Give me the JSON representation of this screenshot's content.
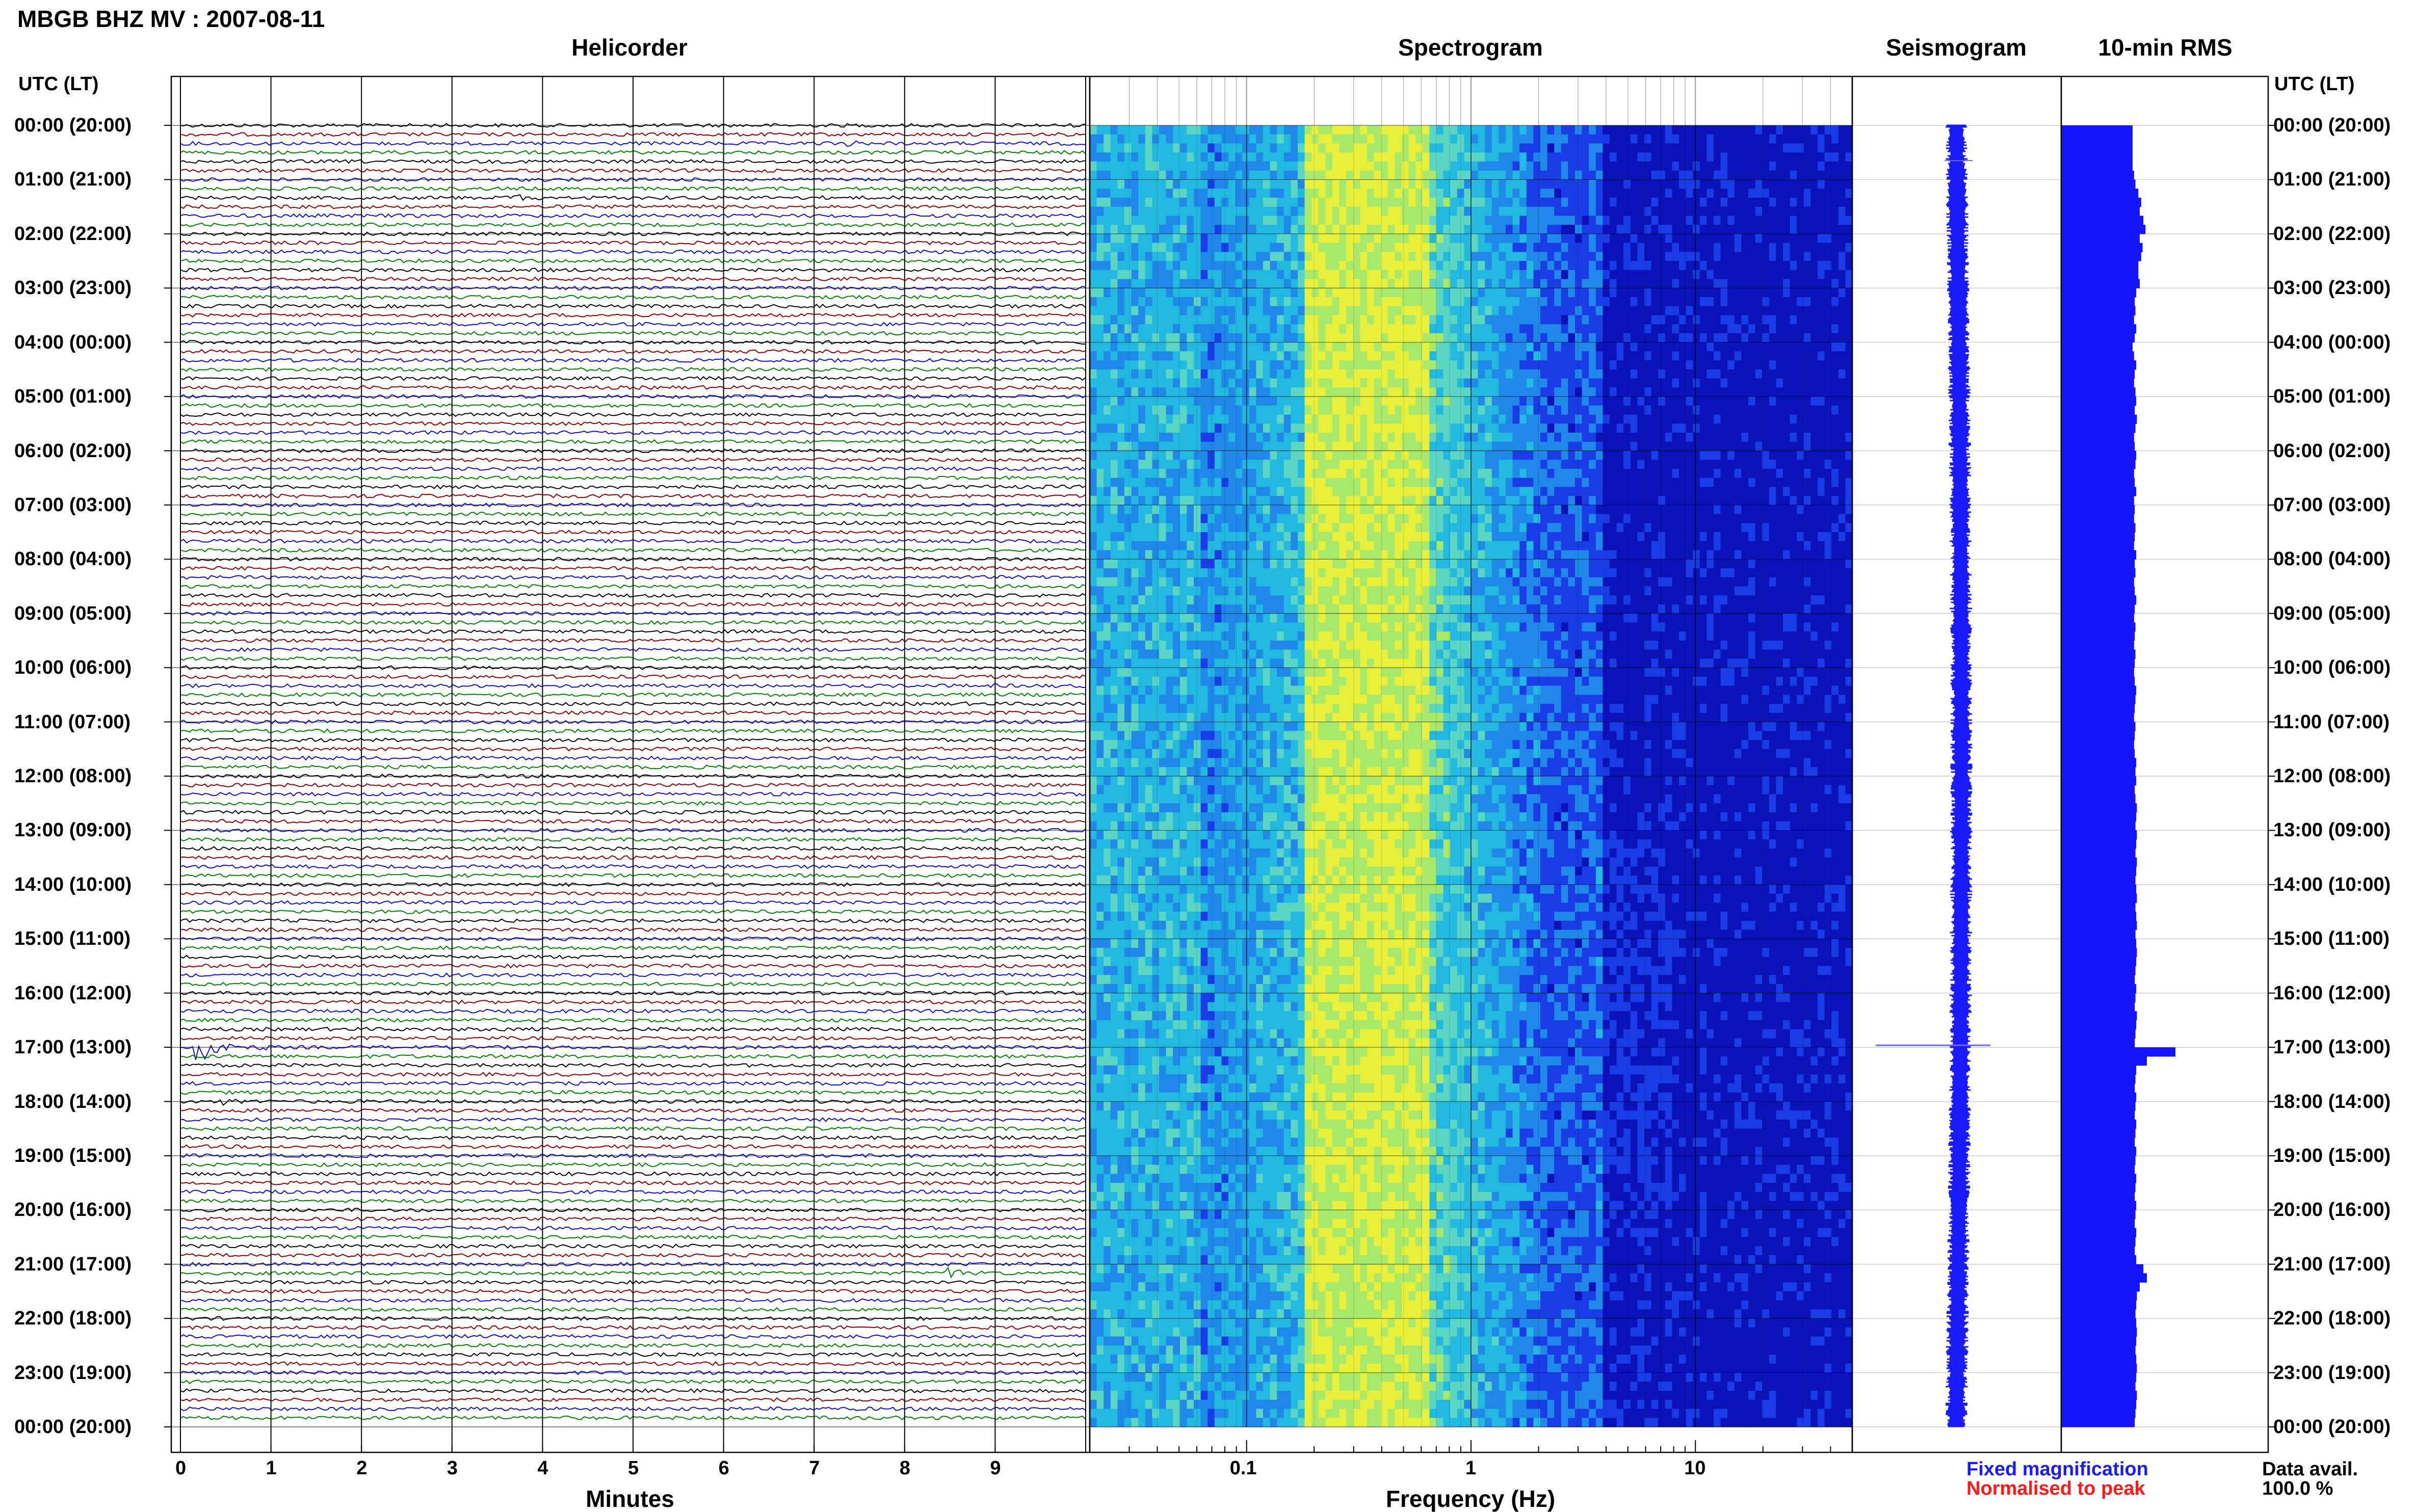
{
  "header": {
    "title": "MBGB BHZ MV : 2007-08-11"
  },
  "panels": {
    "helicorder": {
      "title": "Helicorder",
      "xlabel": "Minutes"
    },
    "spectrogram": {
      "title": "Spectrogram",
      "xlabel": "Frequency (Hz)"
    },
    "seismogram": {
      "title": "Seismogram"
    },
    "rms": {
      "title": "10-min RMS"
    }
  },
  "axis": {
    "utc_label_left": "UTC (LT)",
    "utc_label_right": "UTC (LT)"
  },
  "legend": {
    "fixed": "Fixed magnification",
    "normalised": "Normalised to peak",
    "fixed_color": "#1a1aff",
    "normalised_color": "#ff1a1a"
  },
  "availability": {
    "label": "Data avail.",
    "value": "100.0 %"
  },
  "colors": {
    "trace_palette": [
      "#000000",
      "#8b0000",
      "#1010c0",
      "#008000"
    ],
    "rms_bar": "#1414ff"
  },
  "chart_data": [
    {
      "type": "line",
      "name": "helicorder",
      "x_ticks": [
        "0",
        "1",
        "2",
        "3",
        "4",
        "5",
        "6",
        "7",
        "8",
        "9"
      ],
      "xlim": [
        0,
        10
      ],
      "row_labels": [
        "00:00 (20:00)",
        "01:00 (21:00)",
        "02:00 (22:00)",
        "03:00 (23:00)",
        "04:00 (00:00)",
        "05:00 (01:00)",
        "06:00 (02:00)",
        "07:00 (03:00)",
        "08:00 (04:00)",
        "09:00 (05:00)",
        "10:00 (06:00)",
        "11:00 (07:00)",
        "12:00 (08:00)",
        "13:00 (09:00)",
        "14:00 (10:00)",
        "15:00 (11:00)",
        "16:00 (12:00)",
        "17:00 (13:00)",
        "18:00 (14:00)",
        "19:00 (15:00)",
        "20:00 (16:00)",
        "21:00 (17:00)",
        "22:00 (18:00)",
        "23:00 (19:00)",
        "00:00 (20:00)"
      ],
      "events": [
        {
          "hour": 17,
          "minute": 0.3,
          "amplitude": "large"
        },
        {
          "hour": 21.2,
          "minute": 8.6,
          "amplitude": "medium"
        },
        {
          "hour": 0.3,
          "minute": 7.5,
          "amplitude": "small"
        },
        {
          "hour": 1.3,
          "minute": 3.8,
          "amplitude": "small"
        },
        {
          "hour": 7.8,
          "minute": 6.8,
          "amplitude": "small"
        },
        {
          "hour": 14.7,
          "minute": 3.9,
          "amplitude": "small"
        },
        {
          "hour": 18.0,
          "minute": 0.6,
          "amplitude": "small"
        }
      ]
    },
    {
      "type": "heatmap",
      "name": "spectrogram",
      "x_scale": "log",
      "xlim": [
        0.02,
        50
      ],
      "x_ticks": [
        "0.1",
        "1",
        "10"
      ]
    },
    {
      "type": "line",
      "name": "seismogram",
      "note_peak_hour": 17
    },
    {
      "type": "bar",
      "name": "rms",
      "orientation": "horizontal",
      "values": [
        1.0,
        1.0,
        1.0,
        1.0,
        1.0,
        1.02,
        1.04,
        1.08,
        1.12,
        1.1,
        1.15,
        1.18,
        1.1,
        1.14,
        1.12,
        1.08,
        1.08,
        1.1,
        1.05,
        1.03,
        1.04,
        1.02,
        1.05,
        1.03,
        1.0,
        1.02,
        1.05,
        1.03,
        1.02,
        1.04,
        1.05,
        1.03,
        1.06,
        1.04,
        1.02,
        1.03,
        1.05,
        1.04,
        1.02,
        1.03,
        1.05,
        1.02,
        1.03,
        1.02,
        1.04,
        1.03,
        1.02,
        1.05,
        1.03,
        1.04,
        1.02,
        1.03,
        1.05,
        1.03,
        1.02,
        1.04,
        1.03,
        1.02,
        1.04,
        1.03,
        1.02,
        1.03,
        1.05,
        1.04,
        1.03,
        1.02,
        1.04,
        1.03,
        1.02,
        1.03,
        1.05,
        1.04,
        1.05,
        1.03,
        1.04,
        1.06,
        1.05,
        1.04,
        1.06,
        1.05,
        1.04,
        1.06,
        1.05,
        1.04,
        1.05,
        1.06,
        1.04,
        1.05,
        1.06,
        1.04,
        1.05,
        1.06,
        1.05,
        1.04,
        1.03,
        1.05,
        1.04,
        1.03,
        1.06,
        1.05,
        1.04,
        1.03,
        1.6,
        1.2,
        1.05,
        1.04,
        1.03,
        1.05,
        1.04,
        1.03,
        1.05,
        1.04,
        1.03,
        1.05,
        1.04,
        1.03,
        1.05,
        1.04,
        1.03,
        1.05,
        1.04,
        1.03,
        1.05,
        1.04,
        1.03,
        1.05,
        1.15,
        1.2,
        1.1,
        1.06,
        1.05,
        1.04,
        1.05,
        1.06,
        1.05,
        1.04,
        1.05,
        1.06,
        1.05,
        1.04,
        1.06,
        1.05,
        1.04,
        1.03
      ]
    }
  ]
}
